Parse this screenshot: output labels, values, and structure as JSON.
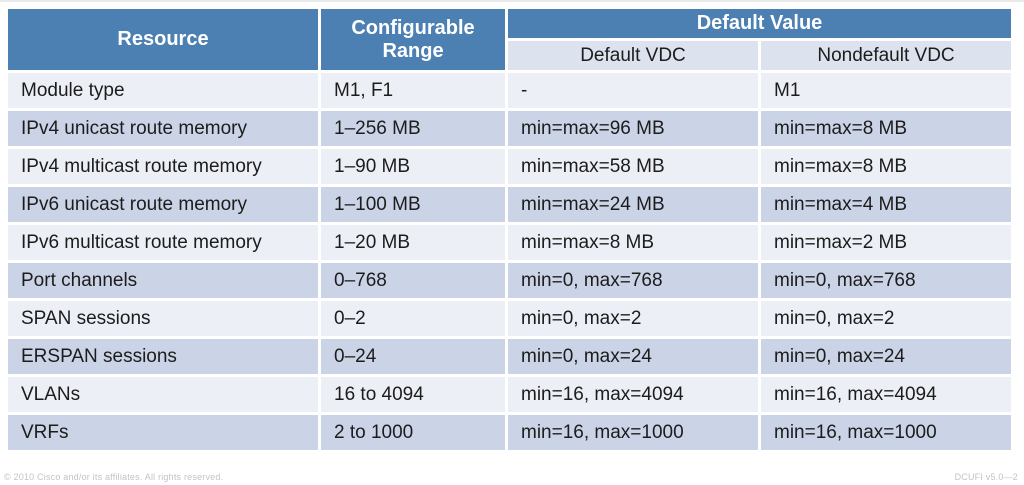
{
  "table": {
    "header": {
      "resource": "Resource",
      "configurable_range": "Configurable Range",
      "default_value": "Default Value",
      "default_vdc": "Default VDC",
      "nondefault_vdc": "Nondefault VDC"
    },
    "rows": [
      {
        "resource": "Module type",
        "range": "M1, F1",
        "default_vdc": "-",
        "nondefault_vdc": "M1"
      },
      {
        "resource": "IPv4 unicast route memory",
        "range": "1–256 MB",
        "default_vdc": "min=max=96 MB",
        "nondefault_vdc": "min=max=8 MB"
      },
      {
        "resource": "IPv4 multicast route memory",
        "range": "1–90 MB",
        "default_vdc": "min=max=58 MB",
        "nondefault_vdc": "min=max=8 MB"
      },
      {
        "resource": "IPv6 unicast route memory",
        "range": "1–100 MB",
        "default_vdc": "min=max=24 MB",
        "nondefault_vdc": "min=max=4 MB"
      },
      {
        "resource": "IPv6 multicast route memory",
        "range": "1–20 MB",
        "default_vdc": "min=max=8 MB",
        "nondefault_vdc": "min=max=2 MB"
      },
      {
        "resource": "Port channels",
        "range": "0–768",
        "default_vdc": "min=0, max=768",
        "nondefault_vdc": "min=0, max=768"
      },
      {
        "resource": "SPAN sessions",
        "range": "0–2",
        "default_vdc": "min=0, max=2",
        "nondefault_vdc": "min=0, max=2"
      },
      {
        "resource": "ERSPAN sessions",
        "range": "0–24",
        "default_vdc": "min=0, max=24",
        "nondefault_vdc": "min=0, max=24"
      },
      {
        "resource": "VLANs",
        "range": "16 to 4094",
        "default_vdc": "min=16, max=4094",
        "nondefault_vdc": "min=16, max=4094"
      },
      {
        "resource": "VRFs",
        "range": "2 to 1000",
        "default_vdc": "min=16, max=1000",
        "nondefault_vdc": "min=16, max=1000"
      }
    ]
  },
  "footer": {
    "left": "© 2010 Cisco and/or its affiliates. All rights reserved.",
    "right": "DCUFI v5.0—2"
  },
  "colors": {
    "header_blue": "#4d80b2",
    "subheader_lavender": "#dde2ef",
    "row_light": "#edeff7",
    "row_dark": "#cbd3e7",
    "text": "#1c1c1c"
  }
}
